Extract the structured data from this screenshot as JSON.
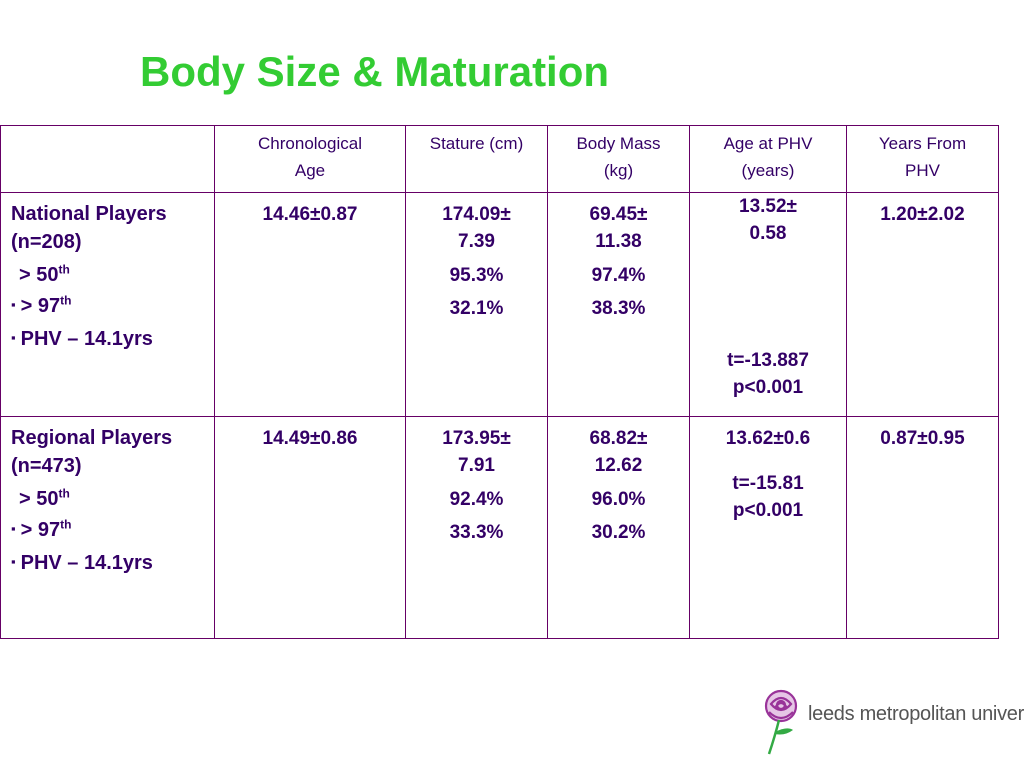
{
  "slide": {
    "title": "Body Size & Maturation"
  },
  "table": {
    "headers": [
      "",
      "Chronological Age",
      "Stature (cm)",
      "Body Mass (kg)",
      "Age at PHV (years)",
      "Years From PHV"
    ],
    "header_lines": {
      "chrono": [
        "Chronological",
        "Age"
      ],
      "stature": [
        "Stature (cm)"
      ],
      "mass": [
        "Body Mass",
        "(kg)"
      ],
      "phv_age": [
        "Age at PHV",
        "(years)"
      ],
      "years_from": [
        "Years From",
        "PHV"
      ]
    },
    "national": {
      "label_line1": "National Players",
      "label_line2": "(n=208)",
      "p50_prefix": "> 50",
      "p50_sup": "th",
      "p97_prefix": "> 97",
      "p97_sup": "th",
      "phv": "PHV – 14.1yrs",
      "bullet": "▪",
      "chrono": "14.46±0.87",
      "stature_line1": "174.09±",
      "stature_line2": "7.39",
      "stature_p50": "95.3%",
      "stature_p97": "32.1%",
      "mass_line1": "69.45±",
      "mass_line2": "11.38",
      "mass_p50": "97.4%",
      "mass_p97": "38.3%",
      "phv_line1": "13.52±",
      "phv_line2": "0.58",
      "phv_t": "t=-13.887",
      "phv_p": "p<0.001",
      "years_from": "1.20±2.02"
    },
    "regional": {
      "label_line1": "Regional Players",
      "label_line2": "(n=473)",
      "p50_prefix": "> 50",
      "p50_sup": "th",
      "p97_prefix": "> 97",
      "p97_sup": "th",
      "phv": "PHV – 14.1yrs",
      "bullet": "▪",
      "chrono": "14.49±0.86",
      "stature_line1": "173.95±",
      "stature_line2": "7.91",
      "stature_p50": "92.4%",
      "stature_p97": "33.3%",
      "mass_line1": "68.82±",
      "mass_line2": "12.62",
      "mass_p50": "96.0%",
      "mass_p97": "30.2%",
      "phv_line1": "13.62±0.6",
      "phv_t": "t=-15.81",
      "phv_p": "p<0.001",
      "years_from": "0.87±0.95"
    }
  },
  "logo": {
    "text": "leeds metropolitan university"
  },
  "colors": {
    "title": "#33cc33",
    "table_border": "#660066",
    "text": "#330066",
    "logo_rose": "#993399"
  }
}
